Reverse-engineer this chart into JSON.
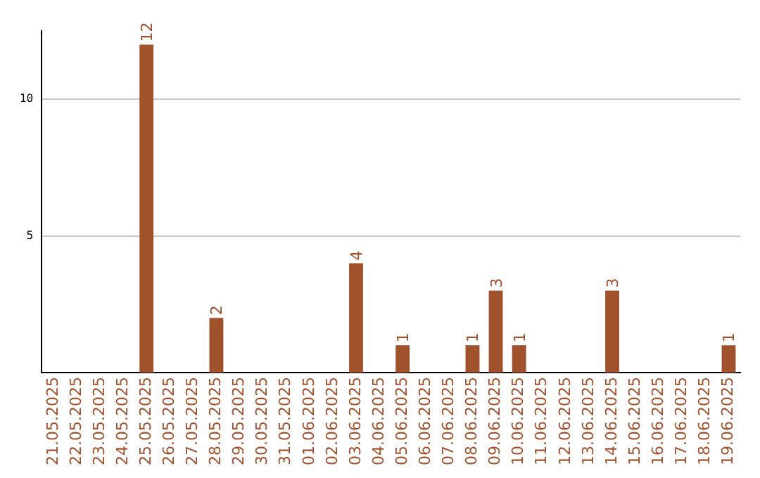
{
  "chart_data": {
    "type": "bar",
    "categories": [
      "21.05.2025",
      "22.05.2025",
      "23.05.2025",
      "24.05.2025",
      "25.05.2025",
      "26.05.2025",
      "27.05.2025",
      "28.05.2025",
      "29.05.2025",
      "30.05.2025",
      "31.05.2025",
      "01.06.2025",
      "02.06.2025",
      "03.06.2025",
      "04.06.2025",
      "05.06.2025",
      "06.06.2025",
      "07.06.2025",
      "08.06.2025",
      "09.06.2025",
      "10.06.2025",
      "11.06.2025",
      "12.06.2025",
      "13.06.2025",
      "14.06.2025",
      "15.06.2025",
      "16.06.2025",
      "17.06.2025",
      "18.06.2025",
      "19.06.2025"
    ],
    "values": [
      0,
      0,
      0,
      0,
      12,
      0,
      0,
      2,
      0,
      0,
      0,
      0,
      0,
      4,
      0,
      1,
      0,
      0,
      1,
      3,
      1,
      0,
      0,
      0,
      3,
      0,
      0,
      0,
      0,
      1
    ],
    "value_labels": [
      null,
      null,
      null,
      null,
      "12",
      null,
      null,
      "2",
      null,
      null,
      null,
      null,
      null,
      "4",
      null,
      "1",
      null,
      null,
      "1",
      "3",
      "1",
      null,
      null,
      null,
      "3",
      null,
      null,
      null,
      null,
      "1"
    ],
    "color": "#a0522d",
    "ylim": [
      0,
      12.5
    ],
    "yticks": [
      5,
      10
    ],
    "grid": "y",
    "legend": false
  }
}
